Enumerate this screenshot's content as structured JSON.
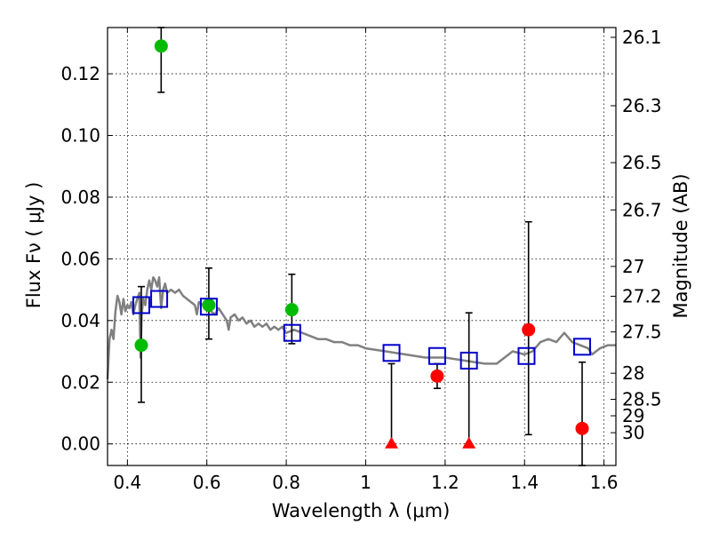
{
  "chart_data": {
    "type": "scatter",
    "xlabel": "Wavelength  λ (μm)",
    "ylabel": "Flux  Fν  ( μJy )",
    "ylabel_right": "Magnitude (AB)",
    "xlim": [
      0.35,
      1.63
    ],
    "ylim": [
      -0.007,
      0.135
    ],
    "grid": true,
    "x_ticks": [
      {
        "value": 0.4,
        "label": "0.4"
      },
      {
        "value": 0.6,
        "label": "0.6"
      },
      {
        "value": 0.8,
        "label": "0.8"
      },
      {
        "value": 1.0,
        "label": "1"
      },
      {
        "value": 1.2,
        "label": "1.2"
      },
      {
        "value": 1.4,
        "label": "1.4"
      },
      {
        "value": 1.6,
        "label": "1.6"
      }
    ],
    "y_ticks": [
      {
        "value": 0.0,
        "label": "0.00"
      },
      {
        "value": 0.02,
        "label": "0.02"
      },
      {
        "value": 0.04,
        "label": "0.04"
      },
      {
        "value": 0.06,
        "label": "0.06"
      },
      {
        "value": 0.08,
        "label": "0.08"
      },
      {
        "value": 0.1,
        "label": "0.10"
      },
      {
        "value": 0.12,
        "label": "0.12"
      }
    ],
    "mag_ticks": [
      "26.1",
      "26.3",
      "26.5",
      "26.7",
      "27",
      "27.2",
      "27.5",
      "28",
      "28.5",
      "29",
      "30"
    ],
    "colors": {
      "model": "#808080",
      "observed_optical": "#00bb00",
      "observed_ir": "#ff0000",
      "model_photometry": "#0000cc",
      "error_bar": "#000000"
    },
    "model_spectrum": [
      [
        0.35,
        0.021
      ],
      [
        0.355,
        0.034
      ],
      [
        0.36,
        0.037
      ],
      [
        0.365,
        0.034
      ],
      [
        0.37,
        0.043
      ],
      [
        0.375,
        0.048
      ],
      [
        0.38,
        0.046
      ],
      [
        0.385,
        0.042
      ],
      [
        0.39,
        0.047
      ],
      [
        0.395,
        0.043
      ],
      [
        0.4,
        0.045
      ],
      [
        0.405,
        0.044
      ],
      [
        0.41,
        0.046
      ],
      [
        0.415,
        0.042
      ],
      [
        0.42,
        0.045
      ],
      [
        0.425,
        0.047
      ],
      [
        0.43,
        0.049
      ],
      [
        0.433,
        0.028
      ],
      [
        0.436,
        0.042
      ],
      [
        0.44,
        0.047
      ],
      [
        0.445,
        0.045
      ],
      [
        0.45,
        0.05
      ],
      [
        0.455,
        0.053
      ],
      [
        0.46,
        0.05
      ],
      [
        0.465,
        0.054
      ],
      [
        0.47,
        0.053
      ],
      [
        0.475,
        0.051
      ],
      [
        0.48,
        0.054
      ],
      [
        0.485,
        0.044
      ],
      [
        0.49,
        0.05
      ],
      [
        0.495,
        0.052
      ],
      [
        0.5,
        0.049
      ],
      [
        0.51,
        0.05
      ],
      [
        0.52,
        0.049
      ],
      [
        0.53,
        0.05
      ],
      [
        0.54,
        0.048
      ],
      [
        0.55,
        0.047
      ],
      [
        0.56,
        0.046
      ],
      [
        0.57,
        0.045
      ],
      [
        0.575,
        0.042
      ],
      [
        0.58,
        0.046
      ],
      [
        0.59,
        0.045
      ],
      [
        0.6,
        0.044
      ],
      [
        0.61,
        0.043
      ],
      [
        0.62,
        0.042
      ],
      [
        0.63,
        0.044
      ],
      [
        0.64,
        0.042
      ],
      [
        0.65,
        0.04
      ],
      [
        0.655,
        0.037
      ],
      [
        0.66,
        0.041
      ],
      [
        0.67,
        0.042
      ],
      [
        0.68,
        0.04
      ],
      [
        0.69,
        0.041
      ],
      [
        0.7,
        0.039
      ],
      [
        0.71,
        0.04
      ],
      [
        0.72,
        0.038
      ],
      [
        0.73,
        0.039
      ],
      [
        0.74,
        0.038
      ],
      [
        0.75,
        0.039
      ],
      [
        0.76,
        0.037
      ],
      [
        0.77,
        0.038
      ],
      [
        0.78,
        0.037
      ],
      [
        0.79,
        0.038
      ],
      [
        0.8,
        0.036
      ],
      [
        0.82,
        0.037
      ],
      [
        0.84,
        0.036
      ],
      [
        0.86,
        0.035
      ],
      [
        0.88,
        0.034
      ],
      [
        0.9,
        0.034
      ],
      [
        0.92,
        0.033
      ],
      [
        0.94,
        0.033
      ],
      [
        0.96,
        0.032
      ],
      [
        0.98,
        0.032
      ],
      [
        1.0,
        0.031
      ],
      [
        1.05,
        0.03
      ],
      [
        1.1,
        0.029
      ],
      [
        1.15,
        0.028
      ],
      [
        1.2,
        0.028
      ],
      [
        1.25,
        0.027
      ],
      [
        1.3,
        0.026
      ],
      [
        1.33,
        0.026
      ],
      [
        1.37,
        0.03
      ],
      [
        1.4,
        0.029
      ],
      [
        1.42,
        0.03
      ],
      [
        1.44,
        0.033
      ],
      [
        1.46,
        0.034
      ],
      [
        1.48,
        0.033
      ],
      [
        1.5,
        0.036
      ],
      [
        1.52,
        0.033
      ],
      [
        1.54,
        0.032
      ],
      [
        1.56,
        0.031
      ],
      [
        1.57,
        0.029
      ],
      [
        1.59,
        0.031
      ],
      [
        1.61,
        0.032
      ],
      [
        1.63,
        0.032
      ]
    ],
    "series": [
      {
        "name": "observed_optical",
        "marker": "circle",
        "points": [
          {
            "x": 0.435,
            "y": 0.032,
            "err_lo": 0.0135,
            "err_hi": 0.051
          },
          {
            "x": 0.485,
            "y": 0.129,
            "err_lo": 0.114,
            "err_hi": 0.135
          },
          {
            "x": 0.605,
            "y": 0.045,
            "err_lo": 0.034,
            "err_hi": 0.057
          },
          {
            "x": 0.814,
            "y": 0.0435,
            "err_lo": 0.0325,
            "err_hi": 0.055
          }
        ]
      },
      {
        "name": "observed_ir",
        "marker": "circle",
        "points": [
          {
            "x": 1.18,
            "y": 0.022,
            "err_lo": 0.018,
            "err_hi": 0.026
          },
          {
            "x": 1.41,
            "y": 0.037,
            "err_lo": 0.003,
            "err_hi": 0.072
          },
          {
            "x": 1.545,
            "y": 0.005,
            "err_lo": -0.007,
            "err_hi": 0.0265
          }
        ]
      },
      {
        "name": "upper_limits",
        "marker": "triangle",
        "points": [
          {
            "x": 1.065,
            "y": 0.0,
            "err_lo": 0.0,
            "err_hi": 0.026
          },
          {
            "x": 1.26,
            "y": 0.0,
            "err_lo": 0.0,
            "err_hi": 0.0425
          }
        ]
      },
      {
        "name": "model_photometry",
        "marker": "square",
        "points": [
          {
            "x": 0.435,
            "y": 0.045
          },
          {
            "x": 0.48,
            "y": 0.047
          },
          {
            "x": 0.605,
            "y": 0.0445
          },
          {
            "x": 0.815,
            "y": 0.036
          },
          {
            "x": 1.065,
            "y": 0.0295
          },
          {
            "x": 1.18,
            "y": 0.0285
          },
          {
            "x": 1.26,
            "y": 0.027
          },
          {
            "x": 1.405,
            "y": 0.0285
          },
          {
            "x": 1.545,
            "y": 0.0315
          }
        ]
      }
    ]
  }
}
